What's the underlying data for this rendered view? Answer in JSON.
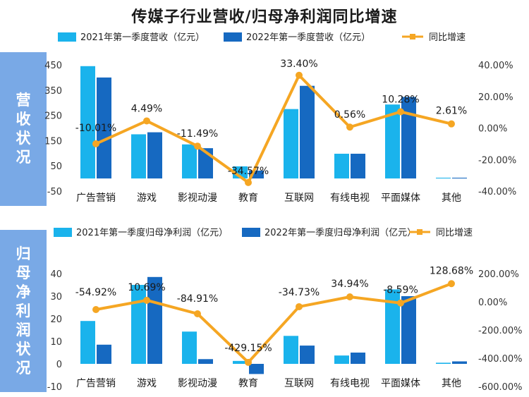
{
  "title": "传媒子行业营收/归母净利润同比增速",
  "sections": {
    "revenue_label": "营收状况",
    "profit_label": "归母净利润状况"
  },
  "colors": {
    "series2021": "#1ab3ec",
    "series2022": "#1669c1",
    "growth": "#f5a623",
    "sidebar": "#79a9e6"
  },
  "chart_data": [
    {
      "type": "bar",
      "categories": [
        "广告营销",
        "游戏",
        "影视动漫",
        "教育",
        "互联网",
        "有线电视",
        "平面媒体",
        "其他"
      ],
      "series": [
        {
          "name": "2021年第一季度营收（亿元）",
          "values": [
            445,
            175,
            135,
            48,
            275,
            98,
            293,
            3
          ]
        },
        {
          "name": "2022年第一季度营收（亿元）",
          "values": [
            400,
            183,
            120,
            31,
            367,
            98,
            323,
            3
          ]
        },
        {
          "name": "同比增速",
          "type": "line",
          "axis": "right",
          "values": [
            -10.01,
            4.49,
            -11.49,
            -34.57,
            33.4,
            0.56,
            10.28,
            2.61
          ],
          "labels": [
            "-10.01%",
            "4.49%",
            "-11.49%",
            "-34.57%",
            "33.40%",
            "0.56%",
            "10.28%",
            "2.61%"
          ]
        }
      ],
      "y_left": {
        "range": [
          -50,
          450
        ],
        "ticks": [
          "-50",
          "50",
          "150",
          "250",
          "350",
          "450"
        ]
      },
      "y_right": {
        "range": [
          -40,
          40
        ],
        "ticks": [
          "-40.00%",
          "-20.00%",
          "0.00%",
          "20.00%",
          "40.00%"
        ]
      },
      "legend": "top"
    },
    {
      "type": "bar",
      "categories": [
        "广告营销",
        "游戏",
        "影视动漫",
        "教育",
        "互联网",
        "有线电视",
        "平面媒体",
        "其他"
      ],
      "series": [
        {
          "name": "2021年第一季度归母净利润（亿元）",
          "values": [
            19,
            35,
            14.3,
            1.3,
            12.4,
            3.7,
            33,
            0.5
          ]
        },
        {
          "name": "2022年第一季度归母净利润（亿元）",
          "values": [
            8.5,
            38.5,
            2.1,
            -4.5,
            8.1,
            5,
            30,
            1.1
          ]
        },
        {
          "name": "同比增速",
          "type": "line",
          "axis": "right",
          "values": [
            -54.92,
            10.69,
            -84.91,
            -429.15,
            -34.73,
            34.94,
            -8.59,
            128.68
          ],
          "labels": [
            "-54.92%",
            "10.69%",
            "-84.91%",
            "-429.15%",
            "-34.73%",
            "34.94%",
            "-8.59%",
            "128.68%"
          ]
        }
      ],
      "y_left": {
        "range": [
          -10,
          40
        ],
        "ticks": [
          "-10",
          "0",
          "10",
          "20",
          "30",
          "40"
        ]
      },
      "y_right": {
        "range": [
          -600,
          200
        ],
        "ticks": [
          "-600.00%",
          "-400.00%",
          "-200.00%",
          "0.00%",
          "200.00%"
        ]
      },
      "legend": "top"
    }
  ]
}
